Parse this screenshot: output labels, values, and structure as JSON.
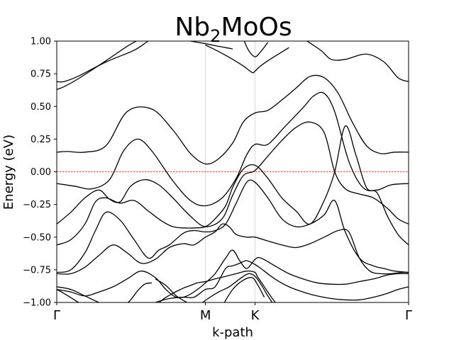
{
  "chart_data": {
    "type": "line",
    "title": {
      "base": "Nb",
      "sub": "2",
      "rest": "MoOs"
    },
    "xlabel": "k-path",
    "ylabel": "Energy (eV)",
    "ylim": [
      -1.0,
      1.0
    ],
    "yticks": [
      "−1.00",
      "−0.75",
      "−0.50",
      "−0.25",
      "0.00",
      "0.25",
      "0.50",
      "0.75",
      "1.00"
    ],
    "ytick_values": [
      -1.0,
      -0.75,
      -0.5,
      -0.25,
      0.0,
      0.25,
      0.5,
      0.75,
      1.0
    ],
    "kpoints": [
      {
        "label": "Γ",
        "pos": 0.0
      },
      {
        "label": "M",
        "pos": 0.4226
      },
      {
        "label": "K",
        "pos": 0.5636
      },
      {
        "label": "Γ",
        "pos": 1.0
      }
    ],
    "fermi_level": 0.0,
    "fermi_color": "#ff0000",
    "line_color": "#000000",
    "grid_color": "#d0d0d0",
    "series": [
      {
        "x": [
          0,
          0.02,
          0.06,
          0.14,
          0.22,
          0.26,
          0.3,
          0.34,
          0.38,
          0.4
        ],
        "y": [
          0.69,
          0.69,
          0.73,
          0.84,
          0.93,
          1.0,
          1.06,
          1.1,
          1.12,
          1.12
        ]
      },
      {
        "x": [
          0,
          0.02,
          0.06,
          0.14,
          0.2,
          0.24
        ],
        "y": [
          0.63,
          0.65,
          0.71,
          0.85,
          0.96,
          1.02
        ]
      },
      {
        "x": [
          0.34,
          0.38,
          0.4226,
          0.46,
          0.48,
          0.5
        ],
        "y": [
          1.02,
          1.0,
          0.98,
          0.96,
          0.95,
          0.94
        ]
      },
      {
        "x": [
          0.4226,
          0.46,
          0.5,
          0.53,
          0.555,
          0.5636,
          0.575,
          0.6,
          0.63,
          0.66
        ],
        "y": [
          0.97,
          0.92,
          0.86,
          0.81,
          0.76,
          0.77,
          0.8,
          0.85,
          0.9,
          0.95
        ]
      },
      {
        "x": [
          0.53,
          0.545,
          0.5636,
          0.58,
          0.6
        ],
        "y": [
          1.02,
          0.93,
          0.88,
          0.92,
          0.99
        ]
      },
      {
        "x": [
          0.7,
          0.75,
          0.78,
          0.82,
          0.88,
          0.93,
          0.97,
          1.0
        ],
        "y": [
          1.02,
          0.93,
          0.86,
          0.86,
          0.9,
          0.84,
          0.72,
          0.69
        ]
      },
      {
        "x": [
          0,
          0.03,
          0.08,
          0.14,
          0.2,
          0.27,
          0.33,
          0.38,
          0.4226,
          0.46,
          0.5,
          0.53,
          0.5636,
          0.6,
          0.64,
          0.68,
          0.72,
          0.76,
          0.8,
          0.84,
          0.88,
          0.92,
          0.96,
          1.0
        ],
        "y": [
          0.15,
          0.155,
          0.15,
          0.2,
          0.46,
          0.48,
          0.32,
          0.14,
          0.06,
          0.1,
          0.22,
          0.38,
          0.45,
          0.47,
          0.55,
          0.64,
          0.73,
          0.72,
          0.6,
          0.38,
          0.2,
          0.14,
          0.15,
          0.15
        ]
      },
      {
        "x": [
          0,
          0.05,
          0.1,
          0.15,
          0.19,
          0.23,
          0.27,
          0.33,
          0.38,
          0.4226,
          0.47,
          0.51,
          0.54,
          0.5636,
          0.6,
          0.65,
          0.7,
          0.73,
          0.76,
          0.79,
          0.83,
          0.87,
          0.91,
          0.95,
          1.0
        ],
        "y": [
          -0.09,
          -0.11,
          -0.13,
          -0.06,
          0.16,
          0.25,
          0.16,
          -0.07,
          -0.22,
          -0.26,
          -0.2,
          -0.05,
          0.13,
          0.21,
          0.21,
          0.35,
          0.49,
          0.58,
          0.6,
          0.46,
          0.08,
          -0.12,
          -0.14,
          -0.1,
          -0.09
        ]
      },
      {
        "x": [
          0,
          0.04,
          0.08,
          0.12,
          0.15,
          0.18,
          0.21,
          0.25,
          0.29,
          0.33,
          0.38,
          0.4226,
          0.47,
          0.5,
          0.53,
          0.5636,
          0.6,
          0.64,
          0.68,
          0.72,
          0.76,
          0.79,
          0.82,
          0.86,
          0.9,
          0.94,
          0.97,
          1.0
        ],
        "y": [
          -0.4,
          -0.31,
          -0.2,
          -0.14,
          -0.21,
          -0.23,
          -0.11,
          -0.06,
          -0.1,
          -0.2,
          -0.34,
          -0.42,
          -0.36,
          -0.18,
          -0.03,
          0.01,
          0.12,
          0.24,
          0.34,
          0.38,
          0.3,
          0.0,
          -0.13,
          -0.17,
          -0.2,
          -0.28,
          -0.36,
          -0.4
        ]
      },
      {
        "x": [
          0,
          0.04,
          0.08,
          0.11,
          0.14,
          0.18,
          0.22,
          0.26,
          0.3,
          0.33,
          0.36,
          0.39,
          0.4226,
          0.45,
          0.48,
          0.5,
          0.53,
          0.5636,
          0.6,
          0.64,
          0.68,
          0.72,
          0.76,
          0.79,
          0.82,
          0.85,
          0.88,
          0.91,
          0.94,
          0.97,
          1.0
        ],
        "y": [
          -0.56,
          -0.52,
          -0.4,
          -0.23,
          -0.2,
          -0.24,
          -0.22,
          -0.3,
          -0.38,
          -0.42,
          -0.43,
          -0.43,
          -0.42,
          -0.36,
          -0.26,
          -0.12,
          0.02,
          0.05,
          -0.05,
          -0.2,
          -0.3,
          -0.4,
          -0.22,
          0.0,
          0.35,
          0.13,
          -0.12,
          -0.16,
          -0.34,
          -0.48,
          -0.56
        ]
      },
      {
        "x": [
          0,
          0.04,
          0.08,
          0.11,
          0.14,
          0.18,
          0.22,
          0.26,
          0.29,
          0.32,
          0.36,
          0.39,
          0.4226,
          0.45,
          0.48,
          0.51,
          0.54,
          0.5636,
          0.6,
          0.64,
          0.68,
          0.72,
          0.76,
          0.79,
          0.82,
          0.86,
          0.9,
          0.93,
          0.96,
          1.0
        ],
        "y": [
          -0.77,
          -0.75,
          -0.62,
          -0.45,
          -0.31,
          -0.37,
          -0.52,
          -0.66,
          -0.6,
          -0.56,
          -0.47,
          -0.45,
          -0.46,
          -0.45,
          -0.4,
          -0.24,
          -0.08,
          -0.08,
          -0.2,
          -0.36,
          -0.42,
          -0.4,
          -0.33,
          -0.22,
          -0.46,
          -0.66,
          -0.72,
          -0.74,
          -0.76,
          -0.77
        ]
      },
      {
        "x": [
          0,
          0.04,
          0.08,
          0.12,
          0.16,
          0.2,
          0.24,
          0.28,
          0.32,
          0.36,
          0.39,
          0.4226,
          0.45,
          0.47,
          0.49,
          0.51,
          0.54,
          0.5636,
          0.6,
          0.64,
          0.68,
          0.72,
          0.76,
          0.8,
          0.83,
          0.86,
          0.89,
          0.92,
          0.95,
          0.98,
          1.0
        ],
        "y": [
          -0.78,
          -0.78,
          -0.73,
          -0.64,
          -0.56,
          -0.62,
          -0.7,
          -0.67,
          -0.58,
          -0.55,
          -0.56,
          -0.5,
          -0.46,
          -0.4,
          -0.42,
          -0.48,
          -0.5,
          -0.5,
          -0.53,
          -0.56,
          -0.58,
          -0.55,
          -0.5,
          -0.45,
          -0.46,
          -0.66,
          -0.76,
          -0.78,
          -0.78,
          -0.77,
          -0.77
        ]
      },
      {
        "x": [
          0,
          0.04,
          0.08,
          0.12,
          0.16,
          0.2,
          0.24,
          0.28,
          0.31,
          0.34,
          0.37,
          0.4,
          0.4226,
          0.45,
          0.48,
          0.5,
          0.52,
          0.54,
          0.5636,
          0.58,
          0.62,
          0.66,
          0.7,
          0.74,
          0.78,
          0.82,
          0.86,
          0.9,
          0.94,
          0.97,
          1.0
        ],
        "y": [
          -0.9,
          -0.92,
          -0.95,
          -0.92,
          -0.88,
          -0.82,
          -0.76,
          -0.81,
          -0.9,
          -0.96,
          -0.95,
          -0.9,
          -0.85,
          -0.78,
          -0.66,
          -0.6,
          -0.68,
          -0.74,
          -0.67,
          -0.66,
          -0.72,
          -0.78,
          -0.82,
          -0.85,
          -0.86,
          -0.86,
          -0.84,
          -0.82,
          -0.79,
          -0.78,
          -0.78
        ]
      },
      {
        "x": [
          0,
          0.04,
          0.08,
          0.12,
          0.16,
          0.2,
          0.24,
          0.28,
          0.32,
          0.36,
          0.39,
          0.4226,
          0.45,
          0.48,
          0.5,
          0.52,
          0.54,
          0.5636,
          0.58,
          0.62,
          0.66,
          0.7,
          0.74,
          0.78,
          0.82,
          0.86,
          0.9,
          0.94,
          0.97,
          1.0
        ],
        "y": [
          -0.88,
          -0.9,
          -0.95,
          -1.0,
          -1.04,
          -1.06,
          -1.04,
          -1.0,
          -0.97,
          -0.96,
          -0.96,
          -0.9,
          -0.88,
          -0.74,
          -0.72,
          -0.7,
          -0.68,
          -0.71,
          -0.74,
          -0.82,
          -0.88,
          -0.92,
          -0.95,
          -0.97,
          -0.98,
          -0.98,
          -0.96,
          -0.93,
          -0.9,
          -0.88
        ]
      },
      {
        "x": [
          0.0,
          0.02,
          0.05,
          0.08
        ],
        "y": [
          -0.9,
          -0.93,
          -0.98,
          -1.03
        ]
      },
      {
        "x": [
          0.28,
          0.3,
          0.33,
          0.36,
          0.38,
          0.4,
          0.4226,
          0.45,
          0.48,
          0.51,
          0.54,
          0.5636,
          0.57,
          0.59,
          0.61,
          0.63
        ],
        "y": [
          -1.03,
          -0.98,
          -0.93,
          -0.89,
          -0.87,
          -0.85,
          -0.84,
          -0.82,
          -0.8,
          -0.78,
          -0.76,
          -0.77,
          -0.8,
          -0.88,
          -0.96,
          -1.03
        ]
      },
      {
        "x": [
          0.4,
          0.43,
          0.46,
          0.49,
          0.52,
          0.545,
          0.5636,
          0.58,
          0.6,
          0.62
        ],
        "y": [
          -1.03,
          -0.97,
          -0.92,
          -0.88,
          -0.82,
          -0.78,
          -0.8,
          -0.86,
          -0.95,
          -1.03
        ]
      },
      {
        "x": [
          0.47,
          0.5,
          0.53,
          0.555,
          0.57,
          0.59
        ],
        "y": [
          -1.03,
          -0.9,
          -0.83,
          -0.81,
          -0.86,
          -0.96
        ]
      },
      {
        "x": [
          0.19,
          0.21,
          0.23,
          0.25,
          0.27
        ],
        "y": [
          -1.03,
          -0.98,
          -0.91,
          -0.86,
          -0.85
        ]
      },
      {
        "x": [
          0.28,
          0.31,
          0.34,
          0.37,
          0.39
        ],
        "y": [
          -0.82,
          -0.87,
          -0.95,
          -1.0,
          -1.03
        ]
      }
    ]
  }
}
